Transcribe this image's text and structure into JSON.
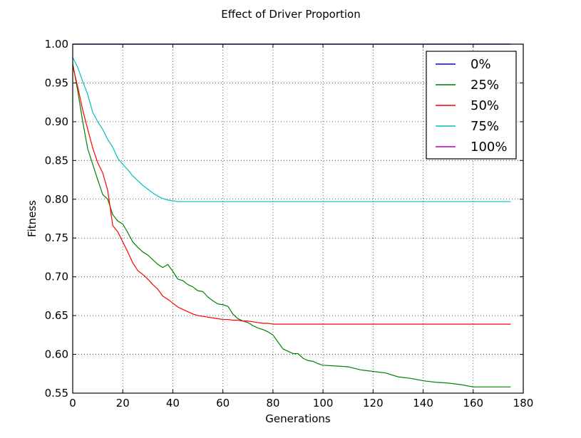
{
  "chart_data": {
    "type": "line",
    "title": "Effect of Driver Proportion",
    "xlabel": "Generations",
    "ylabel": "Fitness",
    "xlim": [
      0,
      180
    ],
    "ylim": [
      0.55,
      1.0
    ],
    "xticks": [
      0,
      20,
      40,
      60,
      80,
      100,
      120,
      140,
      160,
      180
    ],
    "xtick_labels": [
      "0",
      "20",
      "40",
      "60",
      "80",
      "100",
      "120",
      "140",
      "160",
      "180"
    ],
    "yticks": [
      0.55,
      0.6,
      0.65,
      0.7,
      0.75,
      0.8,
      0.85,
      0.9,
      0.95,
      1.0
    ],
    "ytick_labels": [
      "0.55",
      "0.60",
      "0.65",
      "0.70",
      "0.75",
      "0.80",
      "0.85",
      "0.90",
      "0.95",
      "1.00"
    ],
    "grid": true,
    "legend": "top-right",
    "series": [
      {
        "name": "0%",
        "color": "#0000ff",
        "x": [
          0,
          175
        ],
        "y": [
          1.0,
          1.0
        ]
      },
      {
        "name": "25%",
        "color": "#008000",
        "x": [
          0,
          2,
          4,
          6,
          8,
          10,
          12,
          14,
          16,
          18,
          20,
          22,
          24,
          26,
          28,
          30,
          32,
          34,
          36,
          38,
          40,
          42,
          44,
          46,
          48,
          50,
          52,
          54,
          56,
          58,
          60,
          62,
          64,
          66,
          68,
          70,
          72,
          74,
          76,
          78,
          80,
          82,
          84,
          86,
          88,
          90,
          92,
          94,
          96,
          98,
          100,
          105,
          110,
          115,
          120,
          125,
          130,
          135,
          140,
          145,
          150,
          155,
          160,
          165,
          170,
          175
        ],
        "y": [
          0.975,
          0.94,
          0.9,
          0.865,
          0.845,
          0.825,
          0.806,
          0.8,
          0.78,
          0.772,
          0.768,
          0.757,
          0.745,
          0.738,
          0.732,
          0.728,
          0.722,
          0.716,
          0.712,
          0.716,
          0.707,
          0.697,
          0.695,
          0.69,
          0.687,
          0.682,
          0.681,
          0.674,
          0.669,
          0.665,
          0.664,
          0.662,
          0.652,
          0.646,
          0.643,
          0.641,
          0.637,
          0.634,
          0.632,
          0.629,
          0.625,
          0.616,
          0.607,
          0.604,
          0.601,
          0.601,
          0.595,
          0.592,
          0.591,
          0.588,
          0.586,
          0.585,
          0.584,
          0.58,
          0.578,
          0.576,
          0.571,
          0.569,
          0.566,
          0.564,
          0.563,
          0.561,
          0.558,
          0.558,
          0.558,
          0.558
        ]
      },
      {
        "name": "50%",
        "color": "#ff0000",
        "x": [
          0,
          2,
          4,
          6,
          8,
          10,
          12,
          14,
          16,
          18,
          20,
          22,
          24,
          26,
          28,
          30,
          32,
          34,
          36,
          38,
          40,
          42,
          44,
          46,
          48,
          50,
          52,
          54,
          56,
          58,
          60,
          62,
          64,
          66,
          68,
          70,
          72,
          74,
          76,
          78,
          80,
          85,
          90,
          100,
          120,
          140,
          160,
          175
        ],
        "y": [
          0.972,
          0.945,
          0.915,
          0.89,
          0.866,
          0.847,
          0.834,
          0.811,
          0.766,
          0.758,
          0.745,
          0.732,
          0.718,
          0.708,
          0.703,
          0.697,
          0.69,
          0.684,
          0.675,
          0.671,
          0.666,
          0.661,
          0.658,
          0.655,
          0.652,
          0.65,
          0.649,
          0.648,
          0.647,
          0.646,
          0.645,
          0.645,
          0.644,
          0.644,
          0.643,
          0.643,
          0.642,
          0.641,
          0.64,
          0.64,
          0.639,
          0.639,
          0.639,
          0.639,
          0.639,
          0.639,
          0.639,
          0.639
        ]
      },
      {
        "name": "75%",
        "color": "#00bfbf",
        "x": [
          0,
          2,
          4,
          6,
          8,
          10,
          12,
          14,
          16,
          18,
          20,
          22,
          24,
          26,
          28,
          30,
          32,
          34,
          36,
          38,
          40,
          42,
          45,
          50,
          60,
          80,
          100,
          120,
          140,
          160,
          175
        ],
        "y": [
          0.983,
          0.97,
          0.952,
          0.935,
          0.912,
          0.9,
          0.89,
          0.877,
          0.867,
          0.853,
          0.845,
          0.838,
          0.83,
          0.824,
          0.818,
          0.813,
          0.808,
          0.804,
          0.801,
          0.799,
          0.798,
          0.797,
          0.797,
          0.797,
          0.797,
          0.797,
          0.797,
          0.797,
          0.797,
          0.797,
          0.797
        ]
      },
      {
        "name": "100%",
        "color": "#bf00bf",
        "x": [
          0,
          175
        ],
        "y": [
          1.0,
          1.0
        ]
      }
    ]
  }
}
